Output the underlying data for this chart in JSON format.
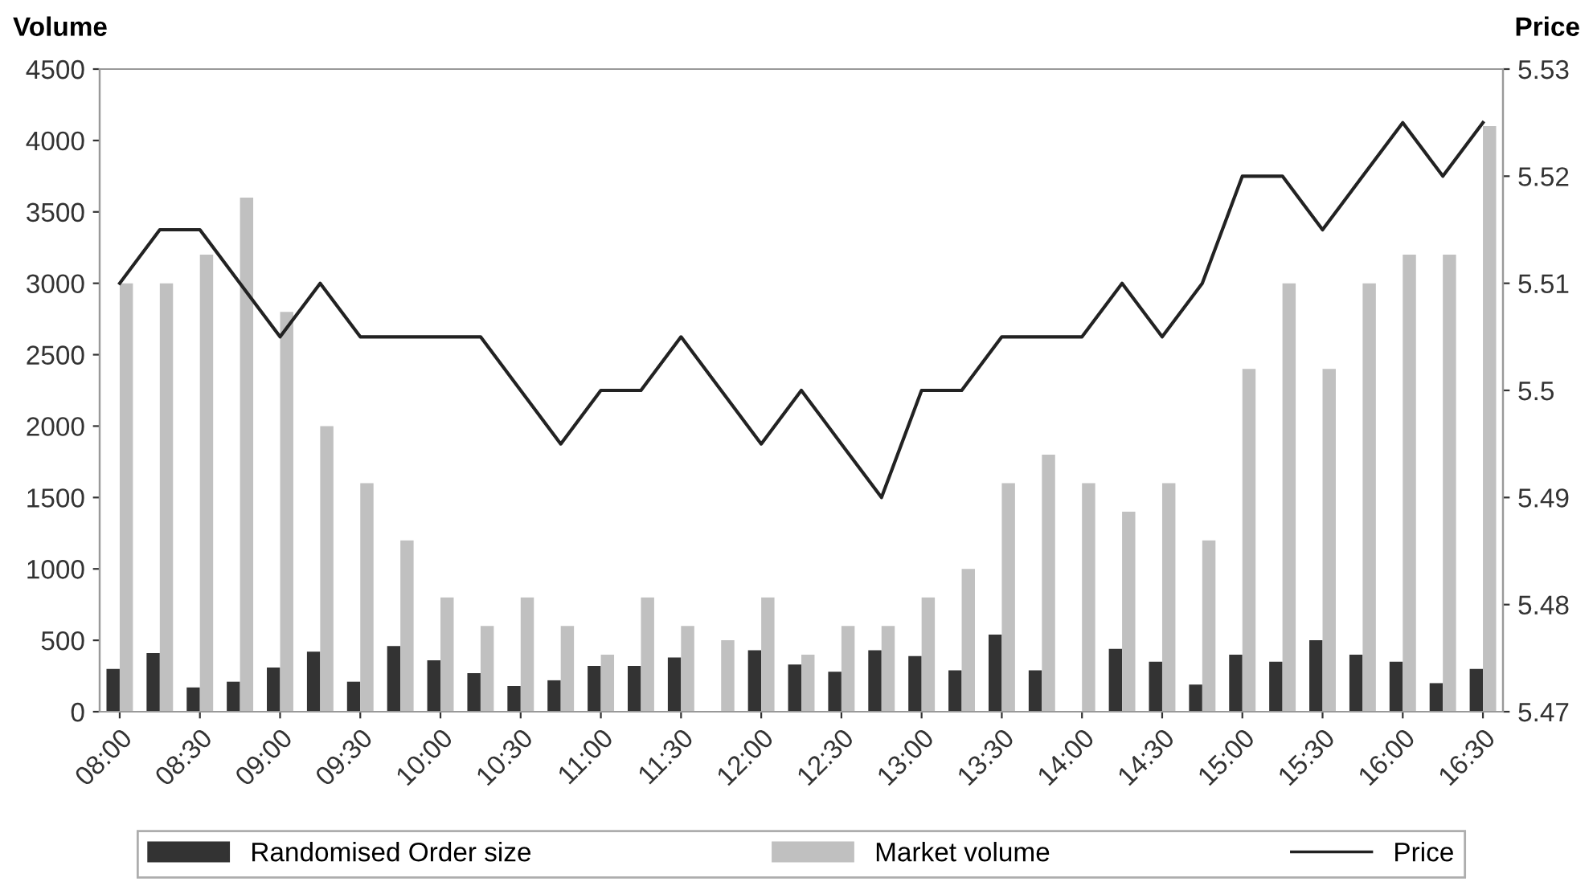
{
  "chart_data": {
    "type": "bar",
    "ylabel": "Volume",
    "y2label": "Price",
    "categories": [
      "08:00",
      null,
      "08:30",
      null,
      "09:00",
      null,
      "09:30",
      null,
      "10:00",
      null,
      "10:30",
      null,
      "11:00",
      null,
      "11:30",
      null,
      "12:00",
      null,
      "12:30",
      null,
      "13:00",
      null,
      "13:30",
      null,
      "14:00",
      null,
      "14:30",
      null,
      "15:00",
      null,
      "15:30",
      null,
      "16:00",
      null,
      "16:30"
    ],
    "series": [
      {
        "name": "Randomised Order size",
        "color": "#333333",
        "values": [
          300,
          410,
          170,
          210,
          310,
          420,
          210,
          460,
          360,
          270,
          180,
          220,
          320,
          320,
          380,
          null,
          430,
          330,
          280,
          430,
          390,
          290,
          540,
          290,
          null,
          440,
          350,
          190,
          400,
          350,
          500,
          400,
          350,
          200,
          300
        ]
      },
      {
        "name": "Market volume",
        "color": "#c0c0c0",
        "values": [
          3000,
          3000,
          3200,
          3600,
          2800,
          2000,
          1600,
          1200,
          800,
          600,
          800,
          600,
          400,
          800,
          600,
          500,
          800,
          400,
          600,
          600,
          800,
          1000,
          1600,
          1800,
          1600,
          1400,
          1600,
          1200,
          2400,
          3000,
          2400,
          3000,
          3200,
          3200,
          4100
        ]
      },
      {
        "name": "Price",
        "type": "line",
        "axis": "y2",
        "color": "#222222",
        "values": [
          5.51,
          5.515,
          5.515,
          5.51,
          5.505,
          5.51,
          5.505,
          5.505,
          5.505,
          5.505,
          5.5,
          5.495,
          5.5,
          5.5,
          5.505,
          5.5,
          5.495,
          5.5,
          5.495,
          5.49,
          5.5,
          5.5,
          5.505,
          5.505,
          5.505,
          5.51,
          5.505,
          5.51,
          5.52,
          5.52,
          5.515,
          5.52,
          5.525,
          5.52,
          5.525
        ]
      }
    ],
    "ylim": [
      0,
      4500
    ],
    "yticks": [
      0,
      500,
      1000,
      1500,
      2000,
      2500,
      3000,
      3500,
      4000,
      4500
    ],
    "y2lim": [
      5.47,
      5.53
    ],
    "y2ticks": [
      5.47,
      5.48,
      5.49,
      5.5,
      5.51,
      5.52,
      5.53
    ],
    "grid": false,
    "legend": "bottom",
    "marker": "none",
    "line_style": "solid"
  }
}
